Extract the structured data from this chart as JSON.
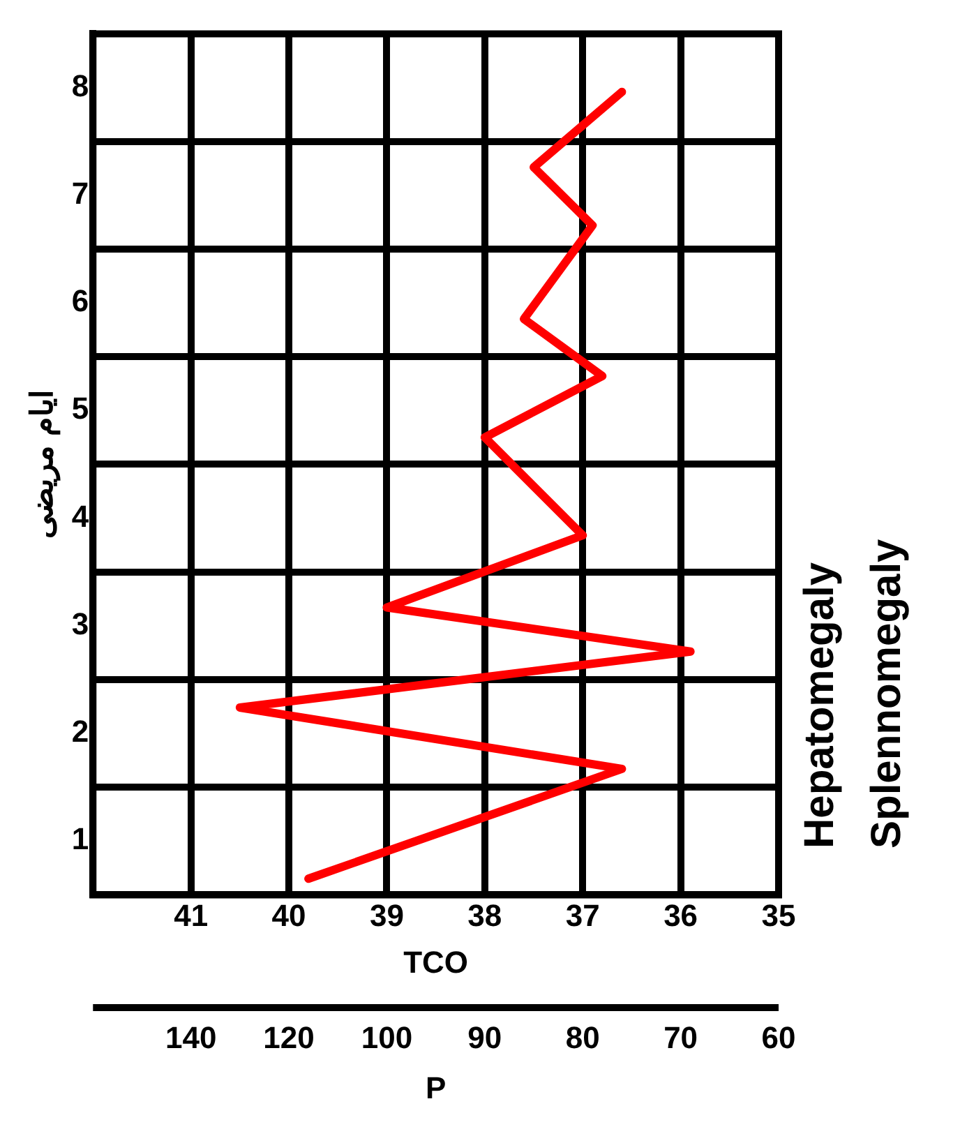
{
  "chart_data": {
    "type": "line",
    "orientation": "horizontal",
    "ylabel": "ايام مريضى",
    "xlabel": "TCO",
    "x2label": "P",
    "grid": true,
    "marker": "none",
    "line_style": "solid",
    "annotations": [
      "140",
      "120",
      "100",
      "90",
      "80",
      "70",
      "60",
      "Hepatomegaly",
      "Splennomegaly"
    ],
    "xlim": [
      42,
      35
    ],
    "xticks": [
      41,
      40,
      39,
      38,
      37,
      36,
      35
    ],
    "ylim": [
      0,
      8
    ],
    "yticks": [
      {
        "value": 0.5,
        "label": "1"
      },
      {
        "value": 1,
        "label": null
      },
      {
        "value": 1.5,
        "label": "2"
      },
      {
        "value": 2,
        "label": null
      },
      {
        "value": 2.5,
        "label": "3"
      },
      {
        "value": 3,
        "label": null
      },
      {
        "value": 3.5,
        "label": "4"
      },
      {
        "value": 4,
        "label": null
      },
      {
        "value": 4.5,
        "label": "5"
      },
      {
        "value": 5,
        "label": null
      },
      {
        "value": 5.5,
        "label": "6"
      },
      {
        "value": 6,
        "label": null
      },
      {
        "value": 6.5,
        "label": "7"
      },
      {
        "value": 7,
        "label": null
      },
      {
        "value": 7.5,
        "label": "8"
      }
    ],
    "series": [
      {
        "color": "#ff0000",
        "x": [
          0.15,
          1.17,
          1.74,
          2.26,
          2.67,
          3.34,
          4.25,
          4.82,
          5.35,
          6.22,
          6.76,
          7.46
        ],
        "values": [
          39.8,
          36.6,
          40.5,
          35.9,
          39.0,
          37.0,
          38.0,
          36.8,
          37.6,
          36.9,
          37.5,
          36.6
        ]
      }
    ]
  }
}
